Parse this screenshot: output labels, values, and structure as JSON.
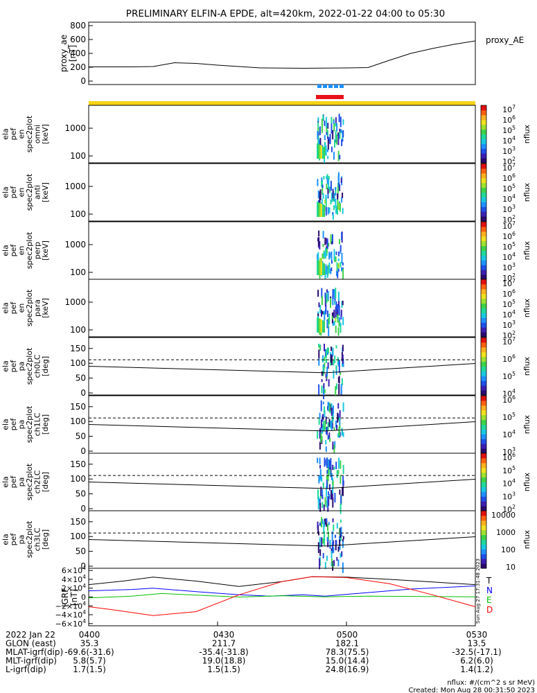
{
  "title": "PRELIMINARY ELFIN-A EPDE, alt=420km, 2022-01-22 04:00 to 05:30",
  "chart_data": [
    {
      "type": "line",
      "panel": "proxy_ae",
      "ylabel": [
        "proxy_ae",
        "[nT]"
      ],
      "ylim": [
        -50,
        850
      ],
      "yticks": [
        800,
        600,
        400,
        200,
        0
      ],
      "ytick_labels": [
        "800",
        "600",
        "400",
        "200",
        "0"
      ],
      "series": [
        {
          "name": "proxy_AE",
          "x": [
            0,
            10,
            15,
            20,
            25,
            30,
            40,
            50,
            60,
            65,
            70,
            75,
            80,
            85,
            90
          ],
          "y": [
            205,
            205,
            210,
            265,
            255,
            230,
            190,
            185,
            190,
            195,
            300,
            400,
            470,
            530,
            580
          ]
        }
      ]
    },
    {
      "type": "heatmap",
      "panel": "omni",
      "ylabel": [
        "ela",
        "pef",
        "en",
        "spec2plot",
        "omni",
        "[keV]"
      ],
      "yticks": [
        1000,
        100
      ],
      "ytick_labels": [
        "1000",
        "100"
      ],
      "colorbar": {
        "label": "nflux",
        "ticks": [
          "10^7",
          "10^6",
          "10^5",
          "10^4",
          "10^3",
          "10^2"
        ]
      }
    },
    {
      "type": "heatmap",
      "panel": "anti",
      "ylabel": [
        "ela",
        "pef",
        "en",
        "spec2plot",
        "anti",
        "[keV]"
      ],
      "yticks": [
        1000,
        100
      ],
      "ytick_labels": [
        "1000",
        "100"
      ],
      "colorbar": {
        "label": "nflux",
        "ticks": [
          "10^7",
          "10^6",
          "10^5",
          "10^4",
          "10^3",
          "10^2"
        ]
      }
    },
    {
      "type": "heatmap",
      "panel": "perp",
      "ylabel": [
        "ela",
        "pef",
        "en",
        "spec2plot",
        "perp",
        "[keV]"
      ],
      "yticks": [
        1000,
        100
      ],
      "ytick_labels": [
        "1000",
        "100"
      ],
      "colorbar": {
        "label": "nflux",
        "ticks": [
          "10^7",
          "10^6",
          "10^5",
          "10^4",
          "10^3",
          "10^2"
        ]
      }
    },
    {
      "type": "heatmap",
      "panel": "para",
      "ylabel": [
        "ela",
        "pef",
        "en",
        "spec2plot",
        "para",
        "[keV]"
      ],
      "yticks": [
        1000,
        100
      ],
      "ytick_labels": [
        "1000",
        "100"
      ],
      "colorbar": {
        "label": "nflux",
        "ticks": [
          "10^7",
          "10^6",
          "10^5",
          "10^4",
          "10^3",
          "10^2"
        ]
      }
    },
    {
      "type": "heatmap",
      "panel": "ch0LC",
      "ylabel": [
        "ela",
        "pef",
        "pa",
        "spec2plot",
        "ch0LC",
        "[deg]"
      ],
      "yticks": [
        150,
        100,
        50,
        0
      ],
      "ytick_labels": [
        "150",
        "100",
        "50",
        "0"
      ],
      "colorbar": {
        "label": "nflux",
        "ticks": [
          "10^7",
          "10^6",
          "10^5",
          "10^4"
        ]
      }
    },
    {
      "type": "heatmap",
      "panel": "ch1LC",
      "ylabel": [
        "ela",
        "pef",
        "pa",
        "spec2plot",
        "ch1LC",
        "[deg]"
      ],
      "yticks": [
        150,
        100,
        50,
        0
      ],
      "ytick_labels": [
        "150",
        "100",
        "50",
        "0"
      ],
      "colorbar": {
        "label": "nflux",
        "ticks": [
          "10^6",
          "10^5",
          "10^4",
          "10^3"
        ]
      }
    },
    {
      "type": "heatmap",
      "panel": "ch2LC",
      "ylabel": [
        "ela",
        "pef",
        "pa",
        "spec2plot",
        "ch2LC",
        "[deg]"
      ],
      "yticks": [
        150,
        100,
        50,
        0
      ],
      "ytick_labels": [
        "150",
        "100",
        "50",
        "0"
      ],
      "colorbar": {
        "label": "nflux",
        "ticks": [
          "10^6",
          "10^5",
          "10^4",
          "10^3",
          "10^2"
        ]
      }
    },
    {
      "type": "heatmap",
      "panel": "ch3LC",
      "ylabel": [
        "ela",
        "pef",
        "pa",
        "spec2plot",
        "ch3LC",
        "[deg]"
      ],
      "yticks": [
        150,
        100,
        50,
        0
      ],
      "ytick_labels": [
        "150",
        "100",
        "50",
        "0"
      ],
      "colorbar": {
        "label": "nflux",
        "ticks": [
          "10000",
          "1000",
          "100",
          "10"
        ]
      }
    },
    {
      "type": "line",
      "panel": "IGRF",
      "ylabel": [
        "IGRF",
        "[nT]"
      ],
      "ylim": [
        -65000,
        65000
      ],
      "yticks": [
        60000,
        40000,
        20000,
        0,
        -20000,
        -40000,
        -60000
      ],
      "ytick_labels": [
        "6×10^4",
        "4×10^4",
        "2×10^4",
        "0",
        "−2×10^4",
        "−4×10^4",
        "−6×10^4"
      ],
      "series": [
        {
          "name": "T",
          "color": "#000000",
          "x": [
            0,
            8,
            15,
            25,
            35,
            45,
            52,
            60,
            70,
            80,
            90
          ],
          "y": [
            28000,
            36000,
            45000,
            36000,
            24000,
            35000,
            46000,
            45000,
            40000,
            34000,
            28000
          ]
        },
        {
          "name": "N",
          "color": "#0000ff",
          "x": [
            0,
            10,
            15,
            25,
            35,
            42,
            50,
            55,
            65,
            75,
            90
          ],
          "y": [
            14000,
            17000,
            20000,
            12000,
            5000,
            2000,
            5000,
            2000,
            10000,
            18000,
            25000
          ]
        },
        {
          "name": "E",
          "color": "#00c000",
          "x": [
            0,
            10,
            17,
            28,
            35,
            45,
            55,
            65,
            90
          ],
          "y": [
            -2000,
            2000,
            8000,
            3000,
            0,
            3000,
            500,
            2000,
            500
          ]
        },
        {
          "name": "D",
          "color": "#ff0000",
          "x": [
            0,
            5,
            15,
            25,
            35,
            45,
            52,
            60,
            70,
            80,
            90
          ],
          "y": [
            -22000,
            -28000,
            -42000,
            -33000,
            5000,
            35000,
            46000,
            44000,
            30000,
            5000,
            -22000
          ]
        }
      ]
    }
  ],
  "colors": {
    "sci_zone_bar": "#f5d214",
    "blue_marker": "#1e90ff",
    "red_marker": "#e8101a"
  },
  "x_axis": {
    "rows": [
      {
        "label": "2022 Jan 22",
        "values": [
          "0400",
          "0430",
          "0500",
          "0530"
        ]
      },
      {
        "label": "GLON (east)",
        "values": [
          "35.3",
          "211.7",
          "182.1",
          "13.5"
        ]
      },
      {
        "label": "MLAT-igrf(dip)",
        "values": [
          "-69.6(-31.6)",
          "-35.4(-31.8)",
          "78.3(75.5)",
          "-32.5(-17.1)"
        ]
      },
      {
        "label": "MLT-igrf(dip)",
        "values": [
          "5.8(5.7)",
          "19.0(18.8)",
          "15.0(14.4)",
          "6.2(6.0)"
        ]
      },
      {
        "label": "L-igrf(dip)",
        "values": [
          "1.7(1.5)",
          "1.5(1.5)",
          "24.8(16.9)",
          "1.4(1.2)"
        ]
      }
    ]
  },
  "footer": {
    "units": "nflux: #/(cm^2 s sr MeV)",
    "created": "Created: Mon Aug 28 00:31:50 2023",
    "side_stamp": "Sun Aug 27 17:31:48 2023"
  }
}
